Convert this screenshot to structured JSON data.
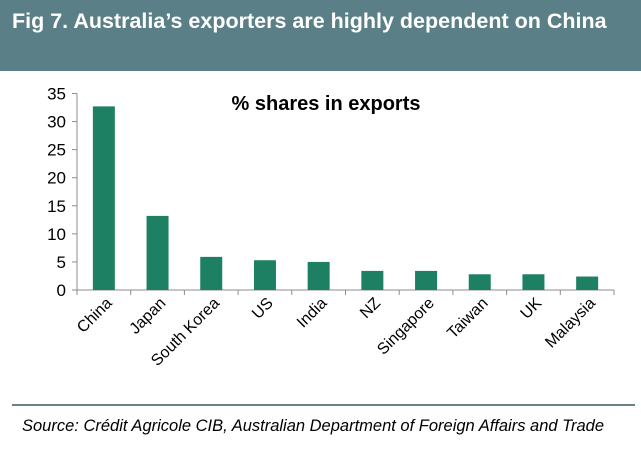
{
  "header": {
    "title": "Fig 7. Australia’s exporters are highly dependent on China"
  },
  "footer": {
    "source": "Source: Crédit Agricole CIB, Australian Department of Foreign Affairs and Trade"
  },
  "colors": {
    "bar": "#1e8062",
    "title_bar": "#5b7f87",
    "rule": "#6b7f86"
  },
  "chart_data": {
    "type": "bar",
    "title": "% shares in exports",
    "xlabel": "",
    "ylabel": "",
    "categories": [
      "China",
      "Japan",
      "South Korea",
      "US",
      "India",
      "NZ",
      "Singapore",
      "Taiwan",
      "UK",
      "Malaysia"
    ],
    "values": [
      32.7,
      13.2,
      5.9,
      5.3,
      5.0,
      3.4,
      3.4,
      2.8,
      2.8,
      2.4
    ],
    "ylim": [
      0,
      35
    ],
    "yticks": [
      0,
      5,
      10,
      15,
      20,
      25,
      30,
      35
    ],
    "grid": false,
    "legend": "none"
  }
}
